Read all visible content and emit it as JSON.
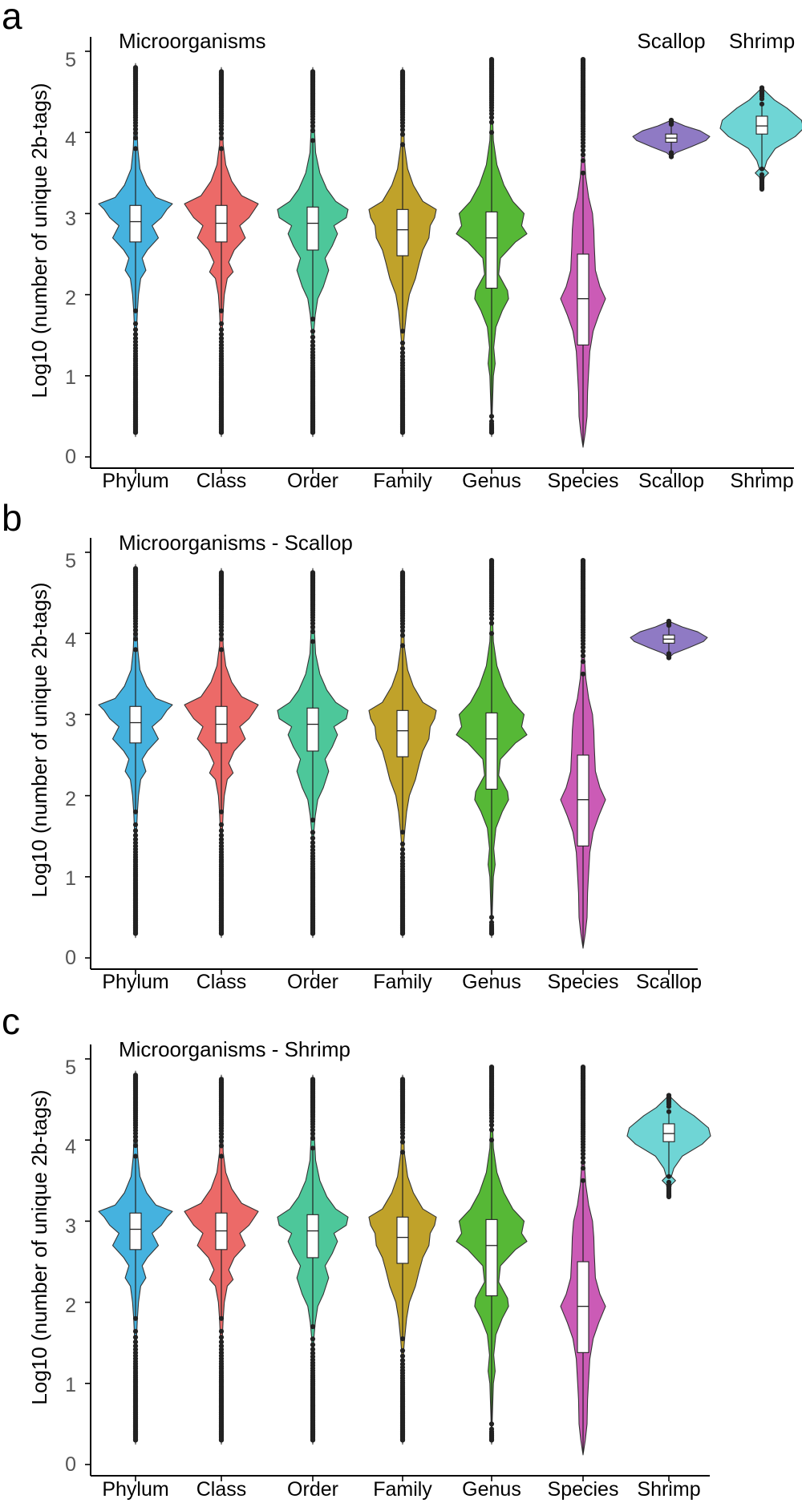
{
  "chart_data": [
    {
      "type": "violin",
      "panel_letter": "a",
      "title": "Microorganisms",
      "xlabel": "",
      "ylabel": "Log10 (number of unique 2b-tags)",
      "ylim": [
        0,
        5
      ],
      "yticks": [
        "0",
        "1",
        "2",
        "3",
        "4",
        "5"
      ],
      "headers": [
        "Scallop",
        "Shrimp"
      ],
      "categories": [
        "Phylum",
        "Class",
        "Order",
        "Family",
        "Genus",
        "Species",
        "Scallop",
        "Shrimp"
      ],
      "series": [
        {
          "name": "Phylum",
          "color": "#45B2DF",
          "q1": 2.65,
          "median": 2.9,
          "q3": 3.1,
          "whisker_low": 1.8,
          "whisker_high": 3.8,
          "min": 0.3,
          "max": 4.8
        },
        {
          "name": "Class",
          "color": "#EC6A68",
          "q1": 2.65,
          "median": 2.88,
          "q3": 3.1,
          "whisker_low": 1.8,
          "whisker_high": 3.8,
          "min": 0.3,
          "max": 4.75
        },
        {
          "name": "Order",
          "color": "#4DC79A",
          "q1": 2.55,
          "median": 2.88,
          "q3": 3.08,
          "whisker_low": 1.7,
          "whisker_high": 3.9,
          "min": 0.3,
          "max": 4.75
        },
        {
          "name": "Family",
          "color": "#C0A22A",
          "q1": 2.48,
          "median": 2.8,
          "q3": 3.05,
          "whisker_low": 1.55,
          "whisker_high": 3.85,
          "min": 0.3,
          "max": 4.75
        },
        {
          "name": "Genus",
          "color": "#56B836",
          "q1": 2.08,
          "median": 2.7,
          "q3": 3.02,
          "whisker_low": 0.5,
          "whisker_high": 4.0,
          "min": 0.3,
          "max": 4.9
        },
        {
          "name": "Species",
          "color": "#CB5BB6",
          "q1": 1.38,
          "median": 1.95,
          "q3": 2.5,
          "whisker_low": 0.15,
          "whisker_high": 3.5,
          "min": 0.15,
          "max": 4.9
        },
        {
          "name": "Scallop",
          "color": "#8F7AC4",
          "q1": 3.88,
          "median": 3.93,
          "q3": 3.98,
          "whisker_low": 3.75,
          "whisker_high": 4.1,
          "min": 3.7,
          "max": 4.15
        },
        {
          "name": "Shrimp",
          "color": "#6FD5D5",
          "q1": 3.98,
          "median": 4.08,
          "q3": 4.2,
          "whisker_low": 3.55,
          "whisker_high": 4.35,
          "min": 3.3,
          "max": 4.55
        }
      ]
    },
    {
      "type": "violin",
      "panel_letter": "b",
      "title": "Microorganisms - Scallop",
      "xlabel": "",
      "ylabel": "Log10 (number of unique 2b-tags)",
      "ylim": [
        0,
        5
      ],
      "yticks": [
        "0",
        "1",
        "2",
        "3",
        "4",
        "5"
      ],
      "headers": [],
      "categories": [
        "Phylum",
        "Class",
        "Order",
        "Family",
        "Genus",
        "Species",
        "Scallop"
      ],
      "series": [
        {
          "name": "Phylum",
          "color": "#45B2DF",
          "q1": 2.65,
          "median": 2.9,
          "q3": 3.1,
          "whisker_low": 1.8,
          "whisker_high": 3.8,
          "min": 0.3,
          "max": 4.8
        },
        {
          "name": "Class",
          "color": "#EC6A68",
          "q1": 2.65,
          "median": 2.88,
          "q3": 3.1,
          "whisker_low": 1.8,
          "whisker_high": 3.8,
          "min": 0.3,
          "max": 4.75
        },
        {
          "name": "Order",
          "color": "#4DC79A",
          "q1": 2.55,
          "median": 2.88,
          "q3": 3.08,
          "whisker_low": 1.7,
          "whisker_high": 3.9,
          "min": 0.3,
          "max": 4.75
        },
        {
          "name": "Family",
          "color": "#C0A22A",
          "q1": 2.48,
          "median": 2.8,
          "q3": 3.05,
          "whisker_low": 1.55,
          "whisker_high": 3.85,
          "min": 0.3,
          "max": 4.75
        },
        {
          "name": "Genus",
          "color": "#56B836",
          "q1": 2.08,
          "median": 2.7,
          "q3": 3.02,
          "whisker_low": 0.5,
          "whisker_high": 4.0,
          "min": 0.3,
          "max": 4.9
        },
        {
          "name": "Species",
          "color": "#CB5BB6",
          "q1": 1.38,
          "median": 1.95,
          "q3": 2.5,
          "whisker_low": 0.15,
          "whisker_high": 3.5,
          "min": 0.15,
          "max": 4.9
        },
        {
          "name": "Scallop",
          "color": "#8F7AC4",
          "q1": 3.88,
          "median": 3.93,
          "q3": 3.98,
          "whisker_low": 3.75,
          "whisker_high": 4.1,
          "min": 3.7,
          "max": 4.15
        }
      ]
    },
    {
      "type": "violin",
      "panel_letter": "c",
      "title": "Microorganisms - Shrimp",
      "xlabel": "",
      "ylabel": "Log10 (number of unique 2b-tags)",
      "ylim": [
        0,
        5
      ],
      "yticks": [
        "0",
        "1",
        "2",
        "3",
        "4",
        "5"
      ],
      "headers": [],
      "categories": [
        "Phylum",
        "Class",
        "Order",
        "Family",
        "Genus",
        "Species",
        "Shrimp"
      ],
      "series": [
        {
          "name": "Phylum",
          "color": "#45B2DF",
          "q1": 2.65,
          "median": 2.9,
          "q3": 3.1,
          "whisker_low": 1.8,
          "whisker_high": 3.8,
          "min": 0.3,
          "max": 4.8
        },
        {
          "name": "Class",
          "color": "#EC6A68",
          "q1": 2.65,
          "median": 2.88,
          "q3": 3.1,
          "whisker_low": 1.8,
          "whisker_high": 3.8,
          "min": 0.3,
          "max": 4.75
        },
        {
          "name": "Order",
          "color": "#4DC79A",
          "q1": 2.55,
          "median": 2.88,
          "q3": 3.08,
          "whisker_low": 1.7,
          "whisker_high": 3.9,
          "min": 0.3,
          "max": 4.75
        },
        {
          "name": "Family",
          "color": "#C0A22A",
          "q1": 2.48,
          "median": 2.8,
          "q3": 3.05,
          "whisker_low": 1.55,
          "whisker_high": 3.85,
          "min": 0.3,
          "max": 4.75
        },
        {
          "name": "Genus",
          "color": "#56B836",
          "q1": 2.08,
          "median": 2.7,
          "q3": 3.02,
          "whisker_low": 0.5,
          "whisker_high": 4.0,
          "min": 0.3,
          "max": 4.9
        },
        {
          "name": "Species",
          "color": "#CB5BB6",
          "q1": 1.38,
          "median": 1.95,
          "q3": 2.5,
          "whisker_low": 0.15,
          "whisker_high": 3.5,
          "min": 0.15,
          "max": 4.9
        },
        {
          "name": "Shrimp",
          "color": "#6FD5D5",
          "q1": 3.98,
          "median": 4.08,
          "q3": 4.2,
          "whisker_low": 3.55,
          "whisker_high": 4.35,
          "min": 3.3,
          "max": 4.55
        }
      ]
    }
  ]
}
